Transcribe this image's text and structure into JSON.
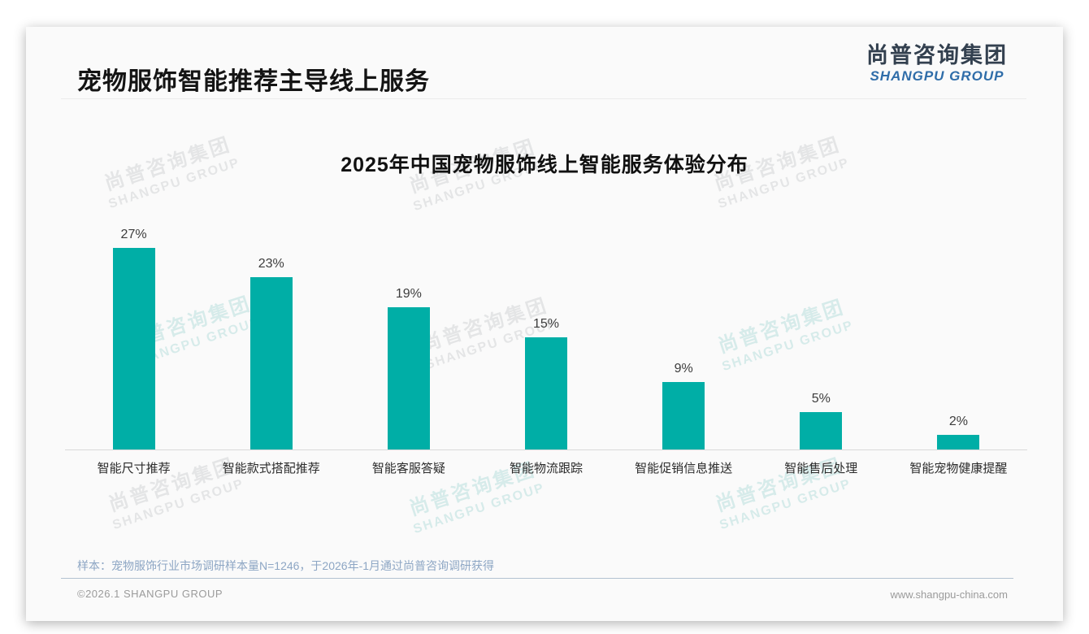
{
  "page": {
    "title": "宠物服饰智能推荐主导线上服务",
    "logo": {
      "cn": "尚普咨询集团",
      "en": "SHANGPU GROUP"
    },
    "watermark": {
      "cn": "尚普咨询集团",
      "en": "SHANGPU GROUP"
    },
    "source_note": "样本：宠物服饰行业市场调研样本量N=1246，于2026年-1月通过尚普咨询调研获得",
    "footer": {
      "copyright": "©2026.1 SHANGPU GROUP",
      "website": "www.shangpu-china.com"
    }
  },
  "chart_data": {
    "type": "bar",
    "title": "2025年中国宠物服饰线上智能服务体验分布",
    "categories": [
      "智能尺寸推荐",
      "智能款式搭配推荐",
      "智能客服答疑",
      "智能物流跟踪",
      "智能促销信息推送",
      "智能售后处理",
      "智能宠物健康提醒"
    ],
    "values": [
      27,
      23,
      19,
      15,
      9,
      5,
      2
    ],
    "value_labels": [
      "27%",
      "23%",
      "19%",
      "15%",
      "9%",
      "5%",
      "2%"
    ],
    "unit": "%",
    "ylim": [
      0,
      30
    ],
    "grid": false,
    "legend": false,
    "bar_color": "#00AEA6",
    "axis_line_color": "#d9d9d9"
  }
}
